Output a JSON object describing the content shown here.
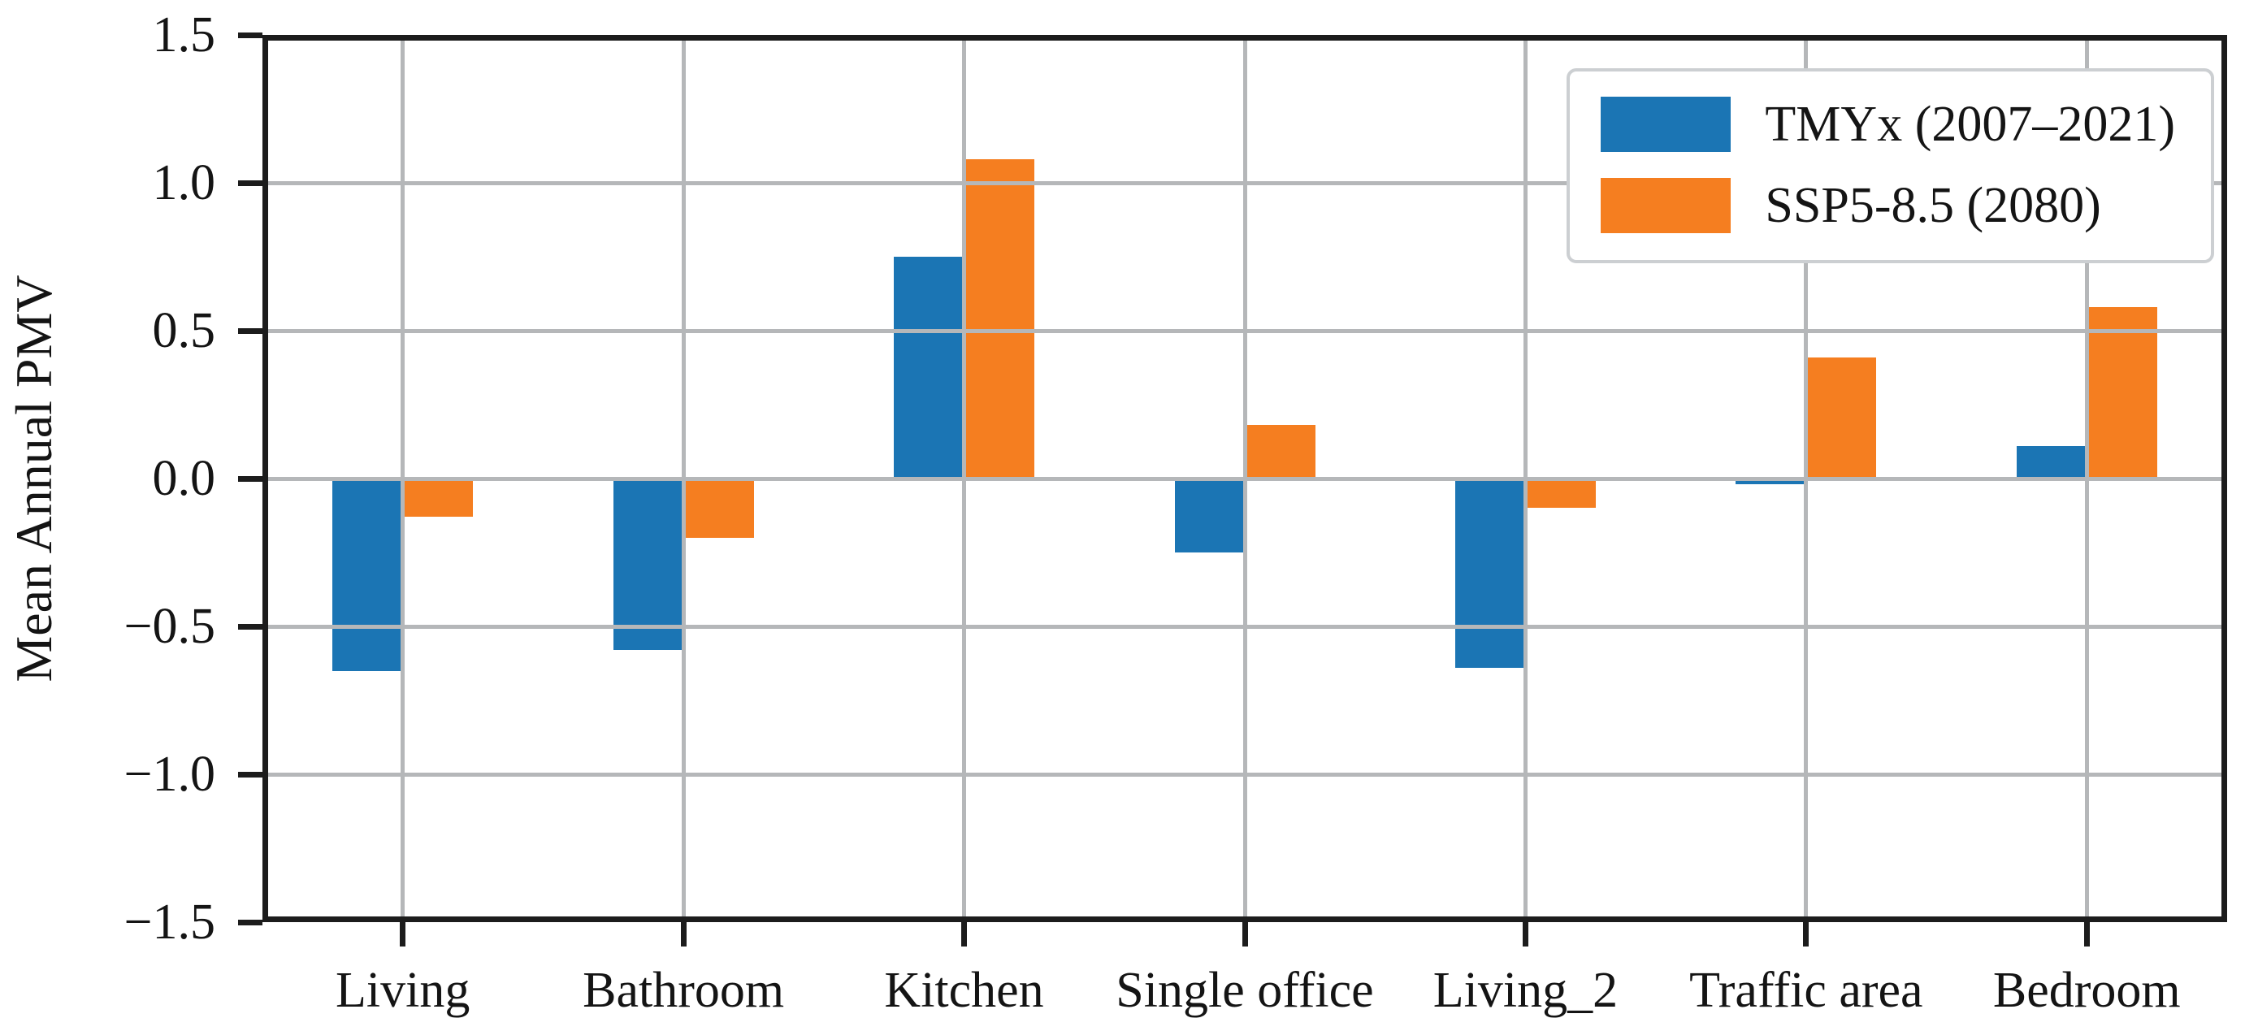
{
  "chart_data": {
    "type": "bar",
    "title": "",
    "categories": [
      "Living",
      "Bathroom",
      "Kitchen",
      "Single office",
      "Living_2",
      "Traffic area",
      "Bedroom"
    ],
    "series": [
      {
        "name": "TMYx (2007–2021)",
        "color": "#1b75b4",
        "values": [
          -0.65,
          -0.58,
          0.75,
          -0.25,
          -0.64,
          -0.02,
          0.11
        ]
      },
      {
        "name": "SSP5-8.5 (2080)",
        "color": "#f57e20",
        "values": [
          -0.13,
          -0.2,
          1.08,
          0.18,
          -0.1,
          0.41,
          0.58
        ]
      }
    ],
    "xlabel": "",
    "ylabel": "Mean Annual PMV",
    "ylim": [
      -1.5,
      1.5
    ],
    "ytick_values": [
      1.5,
      1.0,
      0.5,
      0.0,
      -0.5,
      -1.0,
      -1.5
    ],
    "ytick_labels": [
      "1.5",
      "1.0",
      "0.5",
      "0.0",
      "−0.5",
      "−1.0",
      "−1.5"
    ],
    "grid": true,
    "grid_color": "#b5b7b9",
    "legend_position": "upper right",
    "background_color": "#ffffff",
    "spine_color": "#1c1c1c"
  }
}
